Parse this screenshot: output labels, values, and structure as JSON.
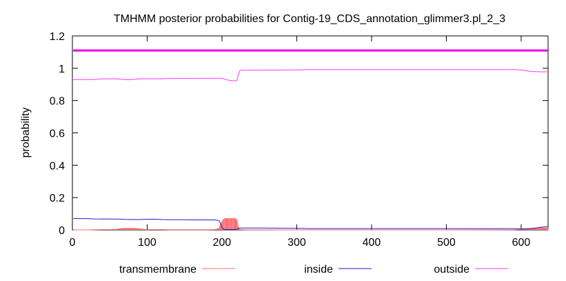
{
  "chart_data": {
    "type": "line",
    "title": "TMHMM posterior probabilities for Contig-19_CDS_annotation_glimmer3.pl_2_3",
    "xlabel": "",
    "ylabel": "probability",
    "xlim": [
      0,
      636
    ],
    "ylim": [
      0,
      1.2
    ],
    "x_ticks": [
      0,
      100,
      200,
      300,
      400,
      500,
      600
    ],
    "y_ticks": [
      0,
      0.2,
      0.4,
      0.6,
      0.8,
      1,
      1.2
    ],
    "x_tick_labels": [
      "0",
      "100",
      "200",
      "300",
      "400",
      "500",
      "600"
    ],
    "y_tick_labels": [
      "0",
      "0.2",
      "0.4",
      "0.6",
      "0.8",
      "1",
      "1.2"
    ],
    "grid": false,
    "legend_position": "bottom",
    "colors": {
      "transmembrane": "#ff6a6a",
      "inside": "#1a1acd",
      "outside": "#ff33ff",
      "topology_bar": "#e600e6"
    },
    "topology_bar": {
      "label": "outside",
      "y": 1.11,
      "x_start": 1,
      "x_end": 636
    },
    "series": [
      {
        "name": "transmembrane",
        "style": "impulses",
        "x": [
          1,
          20,
          30,
          40,
          50,
          60,
          65,
          70,
          75,
          80,
          85,
          90,
          95,
          100,
          110,
          120,
          130,
          140,
          150,
          160,
          170,
          180,
          190,
          196,
          198,
          200,
          202,
          204,
          206,
          208,
          210,
          212,
          214,
          216,
          218,
          220,
          222,
          224,
          230,
          300,
          400,
          500,
          590,
          600,
          605,
          610,
          615,
          620,
          625,
          630,
          636
        ],
        "values": [
          0,
          0,
          0.001,
          0.002,
          0.002,
          0.004,
          0.008,
          0.01,
          0.01,
          0.01,
          0.009,
          0.006,
          0.003,
          0.002,
          0.002,
          0.002,
          0.001,
          0.001,
          0.001,
          0.001,
          0.001,
          0.001,
          0.002,
          0.008,
          0.03,
          0.05,
          0.065,
          0.07,
          0.07,
          0.07,
          0.07,
          0.07,
          0.07,
          0.07,
          0.07,
          0.06,
          0.01,
          0.002,
          0.001,
          0.0,
          0.0,
          0.0,
          0.001,
          0.003,
          0.006,
          0.008,
          0.01,
          0.012,
          0.013,
          0.012,
          0.012
        ]
      },
      {
        "name": "inside",
        "style": "line",
        "x": [
          1,
          10,
          20,
          30,
          40,
          50,
          60,
          70,
          80,
          90,
          100,
          110,
          120,
          130,
          140,
          150,
          160,
          170,
          180,
          190,
          196,
          198,
          200,
          202,
          204,
          206,
          208,
          212,
          216,
          220,
          222,
          224,
          230,
          250,
          300,
          320,
          400,
          500,
          590,
          600,
          605,
          610,
          615,
          620,
          625,
          630,
          636
        ],
        "values": [
          0.07,
          0.07,
          0.07,
          0.068,
          0.067,
          0.067,
          0.067,
          0.065,
          0.064,
          0.064,
          0.066,
          0.066,
          0.064,
          0.063,
          0.063,
          0.063,
          0.062,
          0.062,
          0.062,
          0.062,
          0.058,
          0.04,
          0.015,
          0.005,
          0.002,
          0.002,
          0.002,
          0.002,
          0.002,
          0.005,
          0.01,
          0.012,
          0.012,
          0.012,
          0.01,
          0.008,
          0.008,
          0.008,
          0.008,
          0.007,
          0.007,
          0.008,
          0.01,
          0.012,
          0.016,
          0.018,
          0.02
        ]
      },
      {
        "name": "outside",
        "style": "line",
        "x": [
          1,
          10,
          20,
          30,
          40,
          50,
          60,
          70,
          80,
          90,
          100,
          110,
          120,
          130,
          140,
          150,
          160,
          170,
          180,
          190,
          200,
          205,
          210,
          215,
          220,
          222,
          224,
          226,
          230,
          250,
          300,
          320,
          400,
          500,
          590,
          600,
          605,
          610,
          615,
          620,
          625,
          630,
          636
        ],
        "values": [
          0.93,
          0.93,
          0.93,
          0.93,
          0.935,
          0.935,
          0.935,
          0.93,
          0.93,
          0.935,
          0.935,
          0.935,
          0.935,
          0.937,
          0.937,
          0.937,
          0.937,
          0.937,
          0.938,
          0.938,
          0.938,
          0.93,
          0.925,
          0.922,
          0.925,
          0.96,
          0.985,
          0.988,
          0.988,
          0.988,
          0.99,
          0.992,
          0.992,
          0.992,
          0.992,
          0.99,
          0.986,
          0.982,
          0.98,
          0.979,
          0.978,
          0.978,
          0.978
        ]
      }
    ]
  }
}
